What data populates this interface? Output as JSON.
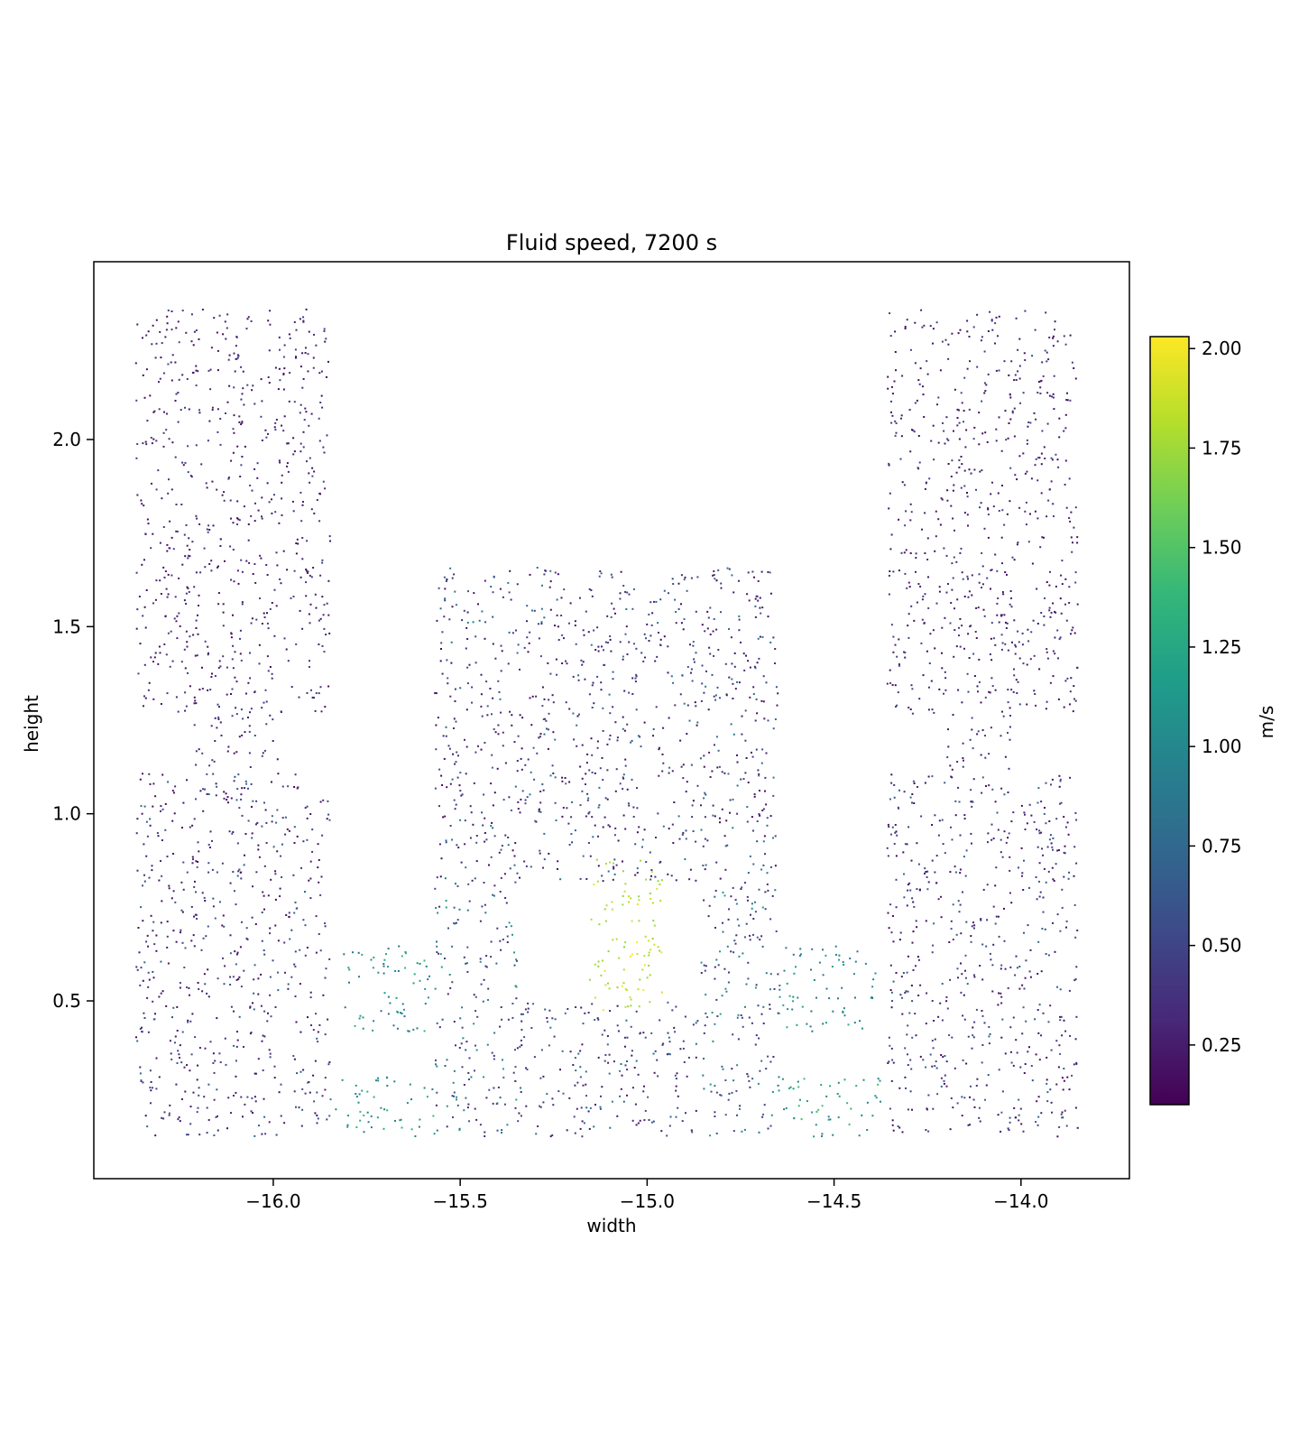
{
  "chart_data": {
    "type": "scatter",
    "title": "Fluid speed, 7200 s",
    "xlabel": "width",
    "ylabel": "height",
    "xlim": [
      -16.48,
      -13.71
    ],
    "ylim": [
      0.025,
      2.475
    ],
    "x_ticks": [
      -16.0,
      -15.5,
      -15.0,
      -14.5,
      -14.0
    ],
    "x_tick_labels": [
      "−16.0",
      "−15.5",
      "−15.0",
      "−14.5",
      "−14.0"
    ],
    "y_ticks": [
      0.5,
      1.0,
      1.5,
      2.0
    ],
    "y_tick_labels": [
      "0.5",
      "1.0",
      "1.5",
      "2.0"
    ],
    "grid": false,
    "colorbar": {
      "label": "m/s",
      "colormap": "viridis",
      "range": [
        0.1,
        2.03
      ],
      "ticks": [
        0.25,
        0.5,
        0.75,
        1.0,
        1.25,
        1.5,
        1.75,
        2.0
      ],
      "tick_labels": [
        "0.25",
        "0.50",
        "0.75",
        "1.00",
        "1.25",
        "1.50",
        "1.75",
        "2.00"
      ],
      "colors": [
        "#440154",
        "#482878",
        "#3e4989",
        "#31688e",
        "#26828e",
        "#1f9e89",
        "#35b779",
        "#6ece58",
        "#b5de2b",
        "#fde725"
      ]
    },
    "regions": [
      {
        "name": "left-upper-tank",
        "x": [
          -16.37,
          -15.85
        ],
        "y": [
          1.27,
          2.35
        ],
        "speed": [
          0.15,
          0.55
        ]
      },
      {
        "name": "left-connector",
        "x": [
          -16.22,
          -15.99
        ],
        "y": [
          1.12,
          1.27
        ],
        "speed": [
          0.2,
          0.6
        ]
      },
      {
        "name": "left-lower-tank",
        "x": [
          -16.37,
          -15.85
        ],
        "y": [
          0.14,
          1.11
        ],
        "speed": [
          0.15,
          0.75
        ]
      },
      {
        "name": "left-side-pipe",
        "x": [
          -15.82,
          -15.57
        ],
        "y": [
          0.42,
          0.65
        ],
        "speed": [
          0.8,
          1.4
        ]
      },
      {
        "name": "left-bottom-pipe",
        "x": [
          -15.85,
          -15.57
        ],
        "y": [
          0.14,
          0.3
        ],
        "speed": [
          0.9,
          1.4
        ]
      },
      {
        "name": "center-upper-block",
        "x": [
          -15.57,
          -14.65
        ],
        "y": [
          0.82,
          1.66
        ],
        "speed": [
          0.15,
          0.9
        ]
      },
      {
        "name": "center-left-leg",
        "x": [
          -15.57,
          -15.35
        ],
        "y": [
          0.14,
          0.82
        ],
        "speed": [
          0.3,
          1.2
        ]
      },
      {
        "name": "center-right-leg",
        "x": [
          -14.86,
          -14.65
        ],
        "y": [
          0.14,
          0.82
        ],
        "speed": [
          0.3,
          1.2
        ]
      },
      {
        "name": "center-bottom-span",
        "x": [
          -15.35,
          -14.86
        ],
        "y": [
          0.14,
          0.5
        ],
        "speed": [
          0.2,
          0.9
        ]
      },
      {
        "name": "center-jet",
        "x": [
          -15.16,
          -14.96
        ],
        "y": [
          0.47,
          0.88
        ],
        "speed": [
          1.7,
          2.03
        ]
      },
      {
        "name": "right-side-pipe",
        "x": [
          -14.65,
          -14.39
        ],
        "y": [
          0.42,
          0.65
        ],
        "speed": [
          0.8,
          1.4
        ]
      },
      {
        "name": "right-bottom-pipe",
        "x": [
          -14.65,
          -14.36
        ],
        "y": [
          0.14,
          0.3
        ],
        "speed": [
          0.9,
          1.5
        ]
      },
      {
        "name": "right-upper-tank",
        "x": [
          -14.36,
          -13.85
        ],
        "y": [
          1.27,
          2.35
        ],
        "speed": [
          0.15,
          0.55
        ]
      },
      {
        "name": "right-connector",
        "x": [
          -14.21,
          -14.03
        ],
        "y": [
          1.12,
          1.27
        ],
        "speed": [
          0.2,
          0.6
        ]
      },
      {
        "name": "right-lower-tank",
        "x": [
          -14.36,
          -13.85
        ],
        "y": [
          0.14,
          1.11
        ],
        "speed": [
          0.15,
          0.75
        ]
      }
    ]
  }
}
